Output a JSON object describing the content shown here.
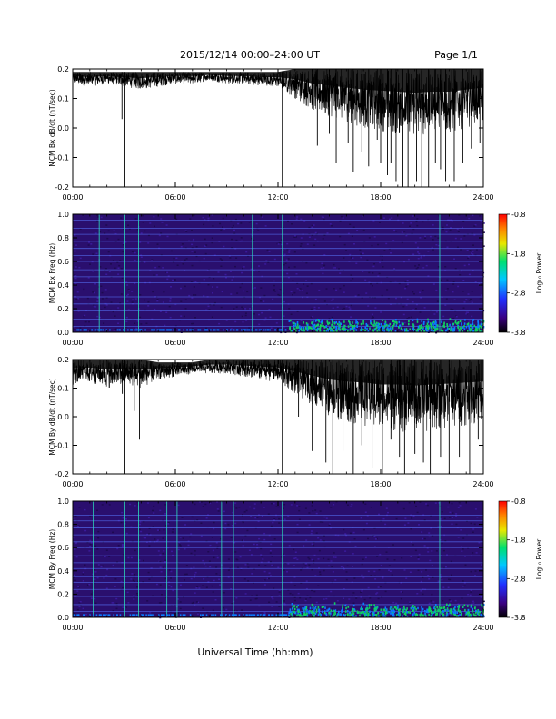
{
  "header": {
    "date_range": "2015/12/14  00:00–24:00 UT",
    "page": "Page 1/1"
  },
  "x_axis_label": "Universal Time (hh:mm)",
  "chart_data": [
    {
      "type": "line",
      "ylabel": "MCM Bx dB/dt (nT/sec)",
      "xlim": [
        0,
        24
      ],
      "ylim": [
        -0.2,
        0.2
      ],
      "x_ticks": [
        "00:00",
        "06:00",
        "12:00",
        "18:00",
        "24:00"
      ],
      "y_ticks": [
        "0.2",
        "0.1",
        "0.0",
        "-0.1",
        "-0.2"
      ],
      "envelope": {
        "x": [
          0,
          1,
          2,
          3,
          4,
          5,
          6,
          7,
          8,
          9,
          10,
          11,
          12,
          13,
          14,
          15,
          16,
          17,
          18,
          19,
          20,
          21,
          22,
          23,
          24
        ],
        "upper": [
          0.19,
          0.19,
          0.19,
          0.19,
          0.19,
          0.19,
          0.19,
          0.19,
          0.19,
          0.19,
          0.19,
          0.19,
          0.19,
          0.2,
          0.2,
          0.2,
          0.2,
          0.2,
          0.2,
          0.2,
          0.2,
          0.2,
          0.2,
          0.2,
          0.2
        ],
        "lower": [
          0.15,
          0.14,
          0.15,
          0.14,
          0.13,
          0.14,
          0.15,
          0.15,
          0.16,
          0.15,
          0.15,
          0.14,
          0.14,
          0.1,
          0.06,
          0.04,
          0.02,
          0.0,
          -0.01,
          -0.02,
          -0.03,
          -0.02,
          -0.02,
          0.0,
          0.02
        ]
      },
      "spikes": [
        {
          "x": 2.88,
          "y": 0.03
        },
        {
          "x": 3.05,
          "y": -0.2
        },
        {
          "x": 12.25,
          "y": -0.2
        },
        {
          "x": 14.0,
          "y": 0.08
        },
        {
          "x": 14.3,
          "y": -0.06
        },
        {
          "x": 15.0,
          "y": -0.02
        },
        {
          "x": 15.4,
          "y": -0.12
        },
        {
          "x": 16.1,
          "y": -0.05
        },
        {
          "x": 16.4,
          "y": -0.15
        },
        {
          "x": 16.9,
          "y": -0.08
        },
        {
          "x": 17.3,
          "y": -0.13
        },
        {
          "x": 17.8,
          "y": -0.04
        },
        {
          "x": 18.0,
          "y": -0.12
        },
        {
          "x": 18.4,
          "y": -0.16
        },
        {
          "x": 18.6,
          "y": -0.12
        },
        {
          "x": 18.9,
          "y": -0.18
        },
        {
          "x": 19.3,
          "y": -0.2
        },
        {
          "x": 19.6,
          "y": -0.2
        },
        {
          "x": 20.1,
          "y": -0.18
        },
        {
          "x": 20.4,
          "y": -0.2
        },
        {
          "x": 20.8,
          "y": -0.2
        },
        {
          "x": 21.2,
          "y": -0.12
        },
        {
          "x": 21.5,
          "y": -0.14
        },
        {
          "x": 21.8,
          "y": -0.18
        },
        {
          "x": 22.3,
          "y": -0.18
        },
        {
          "x": 22.8,
          "y": -0.12
        },
        {
          "x": 23.3,
          "y": -0.07
        },
        {
          "x": 23.8,
          "y": -0.05
        }
      ]
    },
    {
      "type": "heatmap",
      "ylabel": "MCM Bx Freq (Hz)",
      "xlim": [
        0,
        24
      ],
      "ylim": [
        0.0,
        1.0
      ],
      "x_ticks": [
        "00:00",
        "06:00",
        "12:00",
        "18:00",
        "24:00"
      ],
      "y_ticks": [
        "1.0",
        "0.8",
        "0.6",
        "0.4",
        "0.2",
        "0.0"
      ],
      "colorbar": {
        "label": "Log₁₀ Power",
        "range": [
          -3.8,
          -0.8
        ],
        "ticks": [
          "-0.8",
          "-1.8",
          "-2.8",
          "-3.8"
        ]
      },
      "harmonic_lines_hz": [
        0.05,
        0.11,
        0.18,
        0.24,
        0.3,
        0.35,
        0.42,
        0.47,
        0.53,
        0.6,
        0.65,
        0.71,
        0.77,
        0.83,
        0.88,
        0.95
      ],
      "vertical_streaks_h": [
        1.55,
        3.05,
        3.85,
        10.5,
        12.25,
        21.45
      ],
      "low_freq_enhancement": {
        "from_h": 12.6,
        "to_h": 24.0,
        "max_freq_hz": 0.12
      }
    },
    {
      "type": "line",
      "ylabel": "MCM By dB/dt (nT/sec)",
      "xlim": [
        0,
        24
      ],
      "ylim": [
        -0.2,
        0.2
      ],
      "x_ticks": [
        "00:00",
        "06:00",
        "12:00",
        "18:00",
        "24:00"
      ],
      "y_ticks": [
        "0.2",
        "0.1",
        "0.0",
        "-0.1",
        "-0.2"
      ],
      "envelope": {
        "x": [
          0,
          1,
          2,
          3,
          4,
          5,
          6,
          7,
          8,
          9,
          10,
          11,
          12,
          13,
          14,
          15,
          16,
          17,
          18,
          19,
          20,
          21,
          22,
          23,
          24
        ],
        "upper": [
          0.2,
          0.2,
          0.2,
          0.2,
          0.2,
          0.19,
          0.19,
          0.19,
          0.2,
          0.2,
          0.2,
          0.2,
          0.2,
          0.2,
          0.2,
          0.2,
          0.2,
          0.2,
          0.2,
          0.2,
          0.2,
          0.2,
          0.2,
          0.2,
          0.2
        ],
        "lower": [
          0.11,
          0.12,
          0.1,
          0.11,
          0.1,
          0.13,
          0.14,
          0.15,
          0.15,
          0.15,
          0.14,
          0.13,
          0.12,
          0.08,
          0.04,
          0.0,
          -0.02,
          -0.03,
          -0.05,
          -0.05,
          -0.06,
          -0.05,
          -0.04,
          -0.03,
          -0.02
        ]
      },
      "spikes": [
        {
          "x": 2.9,
          "y": 0.08
        },
        {
          "x": 3.05,
          "y": -0.2
        },
        {
          "x": 3.6,
          "y": 0.02
        },
        {
          "x": 3.9,
          "y": -0.08
        },
        {
          "x": 12.25,
          "y": -0.2
        },
        {
          "x": 13.2,
          "y": 0.0
        },
        {
          "x": 14.0,
          "y": -0.12
        },
        {
          "x": 14.8,
          "y": -0.16
        },
        {
          "x": 15.2,
          "y": -0.2
        },
        {
          "x": 15.8,
          "y": -0.12
        },
        {
          "x": 16.4,
          "y": -0.2
        },
        {
          "x": 16.9,
          "y": -0.1
        },
        {
          "x": 17.5,
          "y": -0.18
        },
        {
          "x": 18.1,
          "y": -0.2
        },
        {
          "x": 18.6,
          "y": -0.08
        },
        {
          "x": 19.1,
          "y": -0.14
        },
        {
          "x": 19.4,
          "y": -0.2
        },
        {
          "x": 20.0,
          "y": -0.13
        },
        {
          "x": 20.5,
          "y": -0.16
        },
        {
          "x": 20.9,
          "y": -0.2
        },
        {
          "x": 21.5,
          "y": -0.14
        },
        {
          "x": 22.0,
          "y": -0.2
        },
        {
          "x": 22.6,
          "y": -0.14
        },
        {
          "x": 23.2,
          "y": -0.2
        },
        {
          "x": 23.7,
          "y": -0.08
        }
      ]
    },
    {
      "type": "heatmap",
      "ylabel": "MCM By Freq (Hz)",
      "xlim": [
        0,
        24
      ],
      "ylim": [
        0.0,
        1.0
      ],
      "x_ticks": [
        "00:00",
        "06:00",
        "12:00",
        "18:00",
        "24:00"
      ],
      "y_ticks": [
        "1.0",
        "0.8",
        "0.6",
        "0.4",
        "0.2",
        "0.0"
      ],
      "colorbar": {
        "label": "Log₁₀ Power",
        "range": [
          -3.8,
          -0.8
        ],
        "ticks": [
          "-0.8",
          "-1.8",
          "-2.8",
          "-3.8"
        ]
      },
      "harmonic_lines_hz": [
        0.05,
        0.11,
        0.18,
        0.24,
        0.3,
        0.35,
        0.42,
        0.47,
        0.53,
        0.6,
        0.65,
        0.71,
        0.77,
        0.83,
        0.88,
        0.95
      ],
      "vertical_streaks_h": [
        1.2,
        3.05,
        3.85,
        5.5,
        6.1,
        8.7,
        9.4,
        12.25,
        21.45
      ],
      "low_freq_enhancement": {
        "from_h": 12.6,
        "to_h": 24.0,
        "max_freq_hz": 0.12
      }
    }
  ],
  "colors": {
    "trace": "#000000",
    "heat_background": "#2a0f6e",
    "harmonic_line": "#5a78ff",
    "streak": "#2cf0c0",
    "enhance_low": "#10d060",
    "enhance_high": "#0a7cff"
  }
}
